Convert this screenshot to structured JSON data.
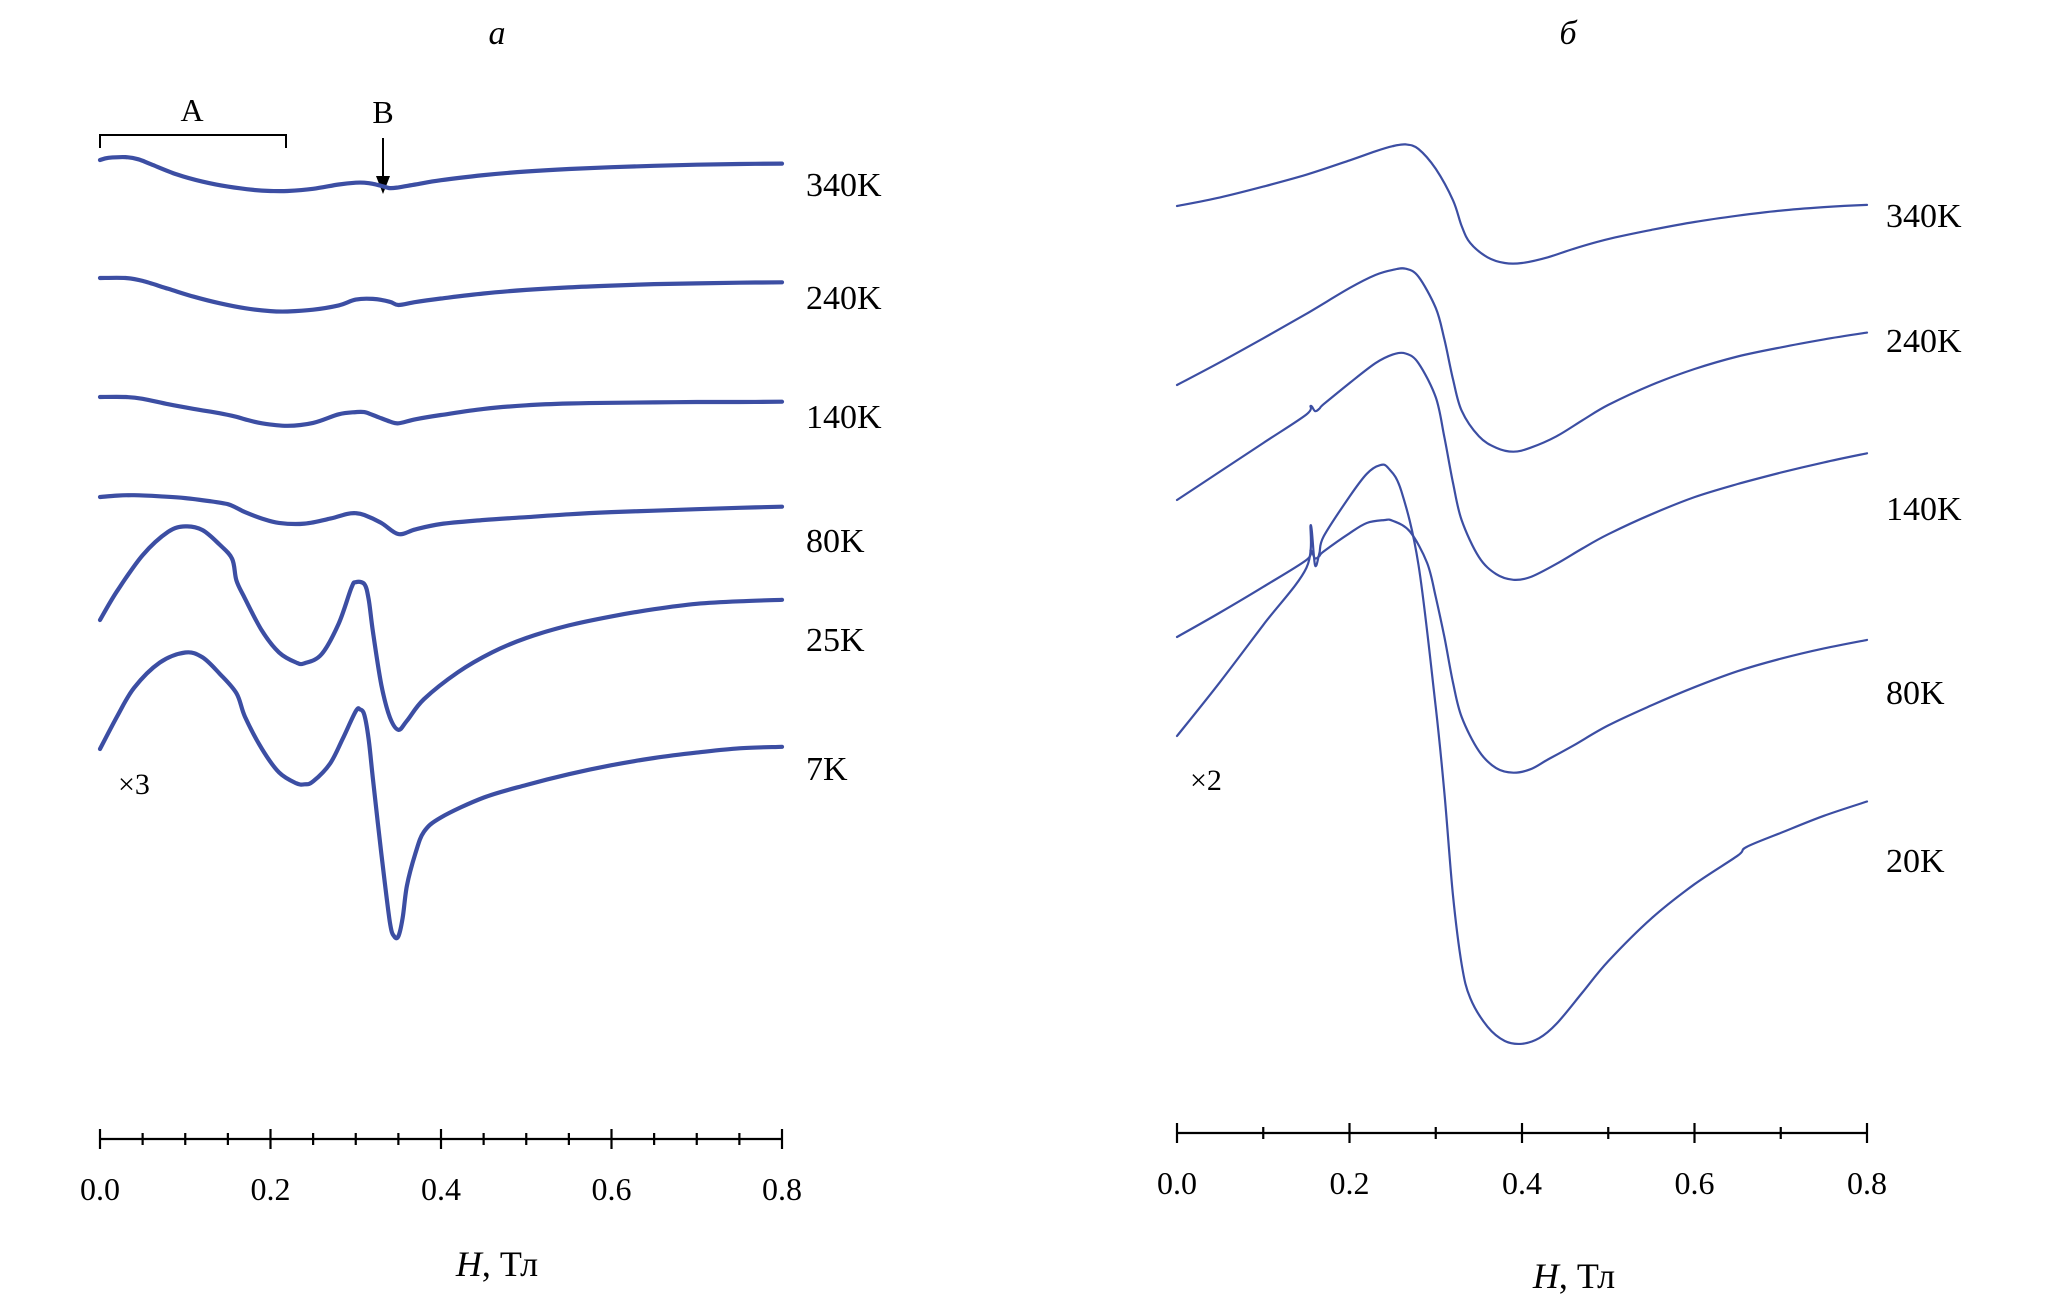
{
  "chart_data": [
    {
      "type": "line",
      "panel_label": "а",
      "xlabel_var": "H",
      "xlabel_unit": ", Тл",
      "xlim": [
        0,
        0.8
      ],
      "x_ticks": [
        "0.0",
        "0.2",
        "0.4",
        "0.6",
        "0.8"
      ],
      "minor_tick_step": 0.05,
      "y_axis": "none",
      "scale_note": "×3",
      "annotations": {
        "bracket_label": "A",
        "bracket_range": [
          0.0,
          0.22
        ],
        "arrow_label": "B",
        "arrow_at": 0.33
      },
      "series": [
        {
          "name": "340K",
          "x": [
            0.0,
            0.01,
            0.03,
            0.045,
            0.06,
            0.09,
            0.12,
            0.15,
            0.18,
            0.2,
            0.22,
            0.25,
            0.28,
            0.3,
            0.31,
            0.32,
            0.33,
            0.34,
            0.35,
            0.37,
            0.4,
            0.45,
            0.5,
            0.55,
            0.6,
            0.65,
            0.7,
            0.75,
            0.8
          ],
          "y": [
            0.0,
            0.06,
            0.08,
            0.02,
            -0.12,
            -0.4,
            -0.6,
            -0.74,
            -0.83,
            -0.86,
            -0.86,
            -0.8,
            -0.68,
            -0.63,
            -0.63,
            -0.66,
            -0.72,
            -0.78,
            -0.76,
            -0.68,
            -0.56,
            -0.42,
            -0.32,
            -0.25,
            -0.2,
            -0.16,
            -0.13,
            -0.11,
            -0.1
          ]
        },
        {
          "name": "240K",
          "x": [
            0.0,
            0.03,
            0.05,
            0.08,
            0.11,
            0.14,
            0.17,
            0.2,
            0.22,
            0.25,
            0.28,
            0.3,
            0.32,
            0.34,
            0.35,
            0.37,
            0.4,
            0.45,
            0.5,
            0.55,
            0.6,
            0.65,
            0.7,
            0.75,
            0.8
          ],
          "y": [
            0.0,
            0.0,
            -0.08,
            -0.3,
            -0.52,
            -0.7,
            -0.84,
            -0.92,
            -0.93,
            -0.88,
            -0.76,
            -0.6,
            -0.58,
            -0.66,
            -0.75,
            -0.67,
            -0.57,
            -0.43,
            -0.33,
            -0.26,
            -0.21,
            -0.17,
            -0.15,
            -0.13,
            -0.12
          ]
        },
        {
          "name": "140K",
          "x": [
            0.0,
            0.03,
            0.05,
            0.08,
            0.11,
            0.14,
            0.16,
            0.17,
            0.19,
            0.22,
            0.25,
            0.28,
            0.3,
            0.31,
            0.32,
            0.34,
            0.35,
            0.37,
            0.4,
            0.45,
            0.5,
            0.55,
            0.6,
            0.65,
            0.7,
            0.75,
            0.8
          ],
          "y": [
            0.0,
            0.0,
            -0.05,
            -0.2,
            -0.33,
            -0.45,
            -0.55,
            -0.62,
            -0.73,
            -0.8,
            -0.72,
            -0.48,
            -0.42,
            -0.42,
            -0.5,
            -0.68,
            -0.73,
            -0.62,
            -0.5,
            -0.33,
            -0.23,
            -0.18,
            -0.16,
            -0.15,
            -0.14,
            -0.14,
            -0.13
          ]
        },
        {
          "name": "80K",
          "x": [
            0.0,
            0.02,
            0.04,
            0.07,
            0.1,
            0.13,
            0.15,
            0.16,
            0.17,
            0.19,
            0.21,
            0.24,
            0.27,
            0.29,
            0.3,
            0.31,
            0.33,
            0.35,
            0.37,
            0.4,
            0.45,
            0.5,
            0.55,
            0.6,
            0.65,
            0.7,
            0.75,
            0.8
          ],
          "y": [
            0.0,
            0.04,
            0.05,
            0.02,
            -0.03,
            -0.12,
            -0.2,
            -0.3,
            -0.42,
            -0.6,
            -0.72,
            -0.74,
            -0.6,
            -0.47,
            -0.45,
            -0.5,
            -0.72,
            -1.03,
            -0.9,
            -0.75,
            -0.64,
            -0.56,
            -0.48,
            -0.42,
            -0.38,
            -0.34,
            -0.3,
            -0.27
          ]
        },
        {
          "name": "25K",
          "x": [
            0.0,
            0.02,
            0.05,
            0.08,
            0.1,
            0.12,
            0.14,
            0.155,
            0.16,
            0.17,
            0.19,
            0.21,
            0.23,
            0.24,
            0.26,
            0.28,
            0.295,
            0.3,
            0.31,
            0.315,
            0.32,
            0.33,
            0.34,
            0.35,
            0.36,
            0.38,
            0.42,
            0.46,
            0.5,
            0.55,
            0.6,
            0.65,
            0.7,
            0.75,
            0.8
          ],
          "y": [
            0.0,
            0.8,
            1.8,
            2.45,
            2.6,
            2.5,
            2.1,
            1.7,
            1.1,
            0.6,
            -0.3,
            -0.9,
            -1.18,
            -1.2,
            -0.95,
            -0.1,
            0.9,
            1.05,
            1.0,
            0.6,
            -0.3,
            -1.8,
            -2.7,
            -3.05,
            -2.8,
            -2.2,
            -1.45,
            -0.9,
            -0.5,
            -0.15,
            0.1,
            0.3,
            0.45,
            0.52,
            0.56
          ]
        },
        {
          "name": "7K",
          "x": [
            0.0,
            0.02,
            0.04,
            0.07,
            0.1,
            0.12,
            0.14,
            0.16,
            0.17,
            0.19,
            0.21,
            0.23,
            0.24,
            0.25,
            0.27,
            0.285,
            0.3,
            0.305,
            0.31,
            0.315,
            0.32,
            0.33,
            0.34,
            0.345,
            0.35,
            0.355,
            0.36,
            0.37,
            0.38,
            0.4,
            0.45,
            0.5,
            0.55,
            0.6,
            0.65,
            0.7,
            0.75,
            0.8
          ],
          "y": [
            0.0,
            0.9,
            1.7,
            2.4,
            2.68,
            2.55,
            2.1,
            1.55,
            0.9,
            0.0,
            -0.65,
            -0.95,
            -0.98,
            -0.9,
            -0.4,
            0.3,
            1.05,
            1.1,
            0.95,
            0.3,
            -0.8,
            -2.9,
            -4.8,
            -5.2,
            -5.2,
            -4.7,
            -3.8,
            -2.9,
            -2.3,
            -1.9,
            -1.35,
            -1.0,
            -0.7,
            -0.45,
            -0.25,
            -0.1,
            0.02,
            0.06
          ]
        }
      ]
    },
    {
      "type": "line",
      "panel_label": "б",
      "xlabel_var": "H",
      "xlabel_unit": ", Тл",
      "xlim": [
        0,
        0.8
      ],
      "x_ticks": [
        "0.0",
        "0.2",
        "0.4",
        "0.6",
        "0.8"
      ],
      "minor_tick_step": 0.1,
      "y_axis": "none",
      "scale_note": "×2",
      "series": [
        {
          "name": "340K",
          "x": [
            0.0,
            0.05,
            0.1,
            0.15,
            0.2,
            0.23,
            0.25,
            0.265,
            0.28,
            0.3,
            0.32,
            0.33,
            0.34,
            0.36,
            0.38,
            0.4,
            0.43,
            0.46,
            0.5,
            0.55,
            0.6,
            0.65,
            0.7,
            0.75,
            0.8
          ],
          "y": [
            0.0,
            0.15,
            0.34,
            0.55,
            0.8,
            0.96,
            1.05,
            1.08,
            1.0,
            0.65,
            0.1,
            -0.35,
            -0.65,
            -0.9,
            -1.0,
            -1.0,
            -0.9,
            -0.75,
            -0.58,
            -0.42,
            -0.28,
            -0.17,
            -0.08,
            -0.02,
            0.02
          ]
        },
        {
          "name": "240K",
          "x": [
            0.0,
            0.05,
            0.1,
            0.15,
            0.2,
            0.23,
            0.25,
            0.265,
            0.28,
            0.3,
            0.31,
            0.32,
            0.33,
            0.35,
            0.37,
            0.39,
            0.41,
            0.44,
            0.47,
            0.5,
            0.55,
            0.6,
            0.65,
            0.7,
            0.75,
            0.8
          ],
          "y": [
            0.0,
            0.4,
            0.82,
            1.25,
            1.7,
            1.93,
            2.02,
            2.04,
            1.9,
            1.35,
            0.8,
            0.1,
            -0.45,
            -0.9,
            -1.1,
            -1.17,
            -1.1,
            -0.9,
            -0.62,
            -0.35,
            0.0,
            0.28,
            0.5,
            0.66,
            0.8,
            0.92
          ]
        },
        {
          "name": "140K",
          "x": [
            0.0,
            0.05,
            0.1,
            0.15,
            0.155,
            0.16,
            0.165,
            0.17,
            0.2,
            0.23,
            0.25,
            0.265,
            0.28,
            0.3,
            0.31,
            0.32,
            0.33,
            0.35,
            0.37,
            0.39,
            0.41,
            0.44,
            0.47,
            0.5,
            0.55,
            0.6,
            0.65,
            0.7,
            0.75,
            0.8
          ],
          "y": [
            0.0,
            0.5,
            1.0,
            1.5,
            1.65,
            1.56,
            1.6,
            1.68,
            2.05,
            2.4,
            2.55,
            2.57,
            2.4,
            1.8,
            1.1,
            0.3,
            -0.35,
            -1.0,
            -1.3,
            -1.4,
            -1.35,
            -1.12,
            -0.85,
            -0.6,
            -0.25,
            0.05,
            0.28,
            0.48,
            0.66,
            0.82
          ]
        },
        {
          "name": "80K",
          "x": [
            0.0,
            0.05,
            0.1,
            0.15,
            0.155,
            0.16,
            0.165,
            0.17,
            0.2,
            0.22,
            0.24,
            0.25,
            0.27,
            0.29,
            0.3,
            0.31,
            0.32,
            0.33,
            0.35,
            0.37,
            0.39,
            0.41,
            0.43,
            0.46,
            0.5,
            0.55,
            0.6,
            0.65,
            0.7,
            0.75,
            0.8
          ],
          "y": [
            0.0,
            0.43,
            0.88,
            1.35,
            1.52,
            1.38,
            1.42,
            1.5,
            1.82,
            2.0,
            2.05,
            2.04,
            1.85,
            1.3,
            0.7,
            0.0,
            -0.8,
            -1.4,
            -2.0,
            -2.3,
            -2.38,
            -2.32,
            -2.15,
            -1.9,
            -1.55,
            -1.2,
            -0.88,
            -0.6,
            -0.38,
            -0.2,
            -0.05
          ]
        },
        {
          "name": "20K",
          "x": [
            0.0,
            0.05,
            0.1,
            0.15,
            0.155,
            0.16,
            0.165,
            0.17,
            0.2,
            0.22,
            0.235,
            0.245,
            0.26,
            0.28,
            0.3,
            0.31,
            0.32,
            0.33,
            0.34,
            0.36,
            0.38,
            0.4,
            0.42,
            0.44,
            0.47,
            0.5,
            0.55,
            0.6,
            0.65,
            0.66,
            0.7,
            0.75,
            0.8
          ],
          "y": [
            0.0,
            0.95,
            1.95,
            2.95,
            3.7,
            3.0,
            3.2,
            3.5,
            4.2,
            4.6,
            4.75,
            4.7,
            4.3,
            3.0,
            0.5,
            -1.0,
            -2.8,
            -4.0,
            -4.6,
            -5.1,
            -5.35,
            -5.4,
            -5.3,
            -5.05,
            -4.5,
            -3.95,
            -3.2,
            -2.6,
            -2.1,
            -1.95,
            -1.7,
            -1.4,
            -1.15
          ]
        }
      ]
    }
  ]
}
